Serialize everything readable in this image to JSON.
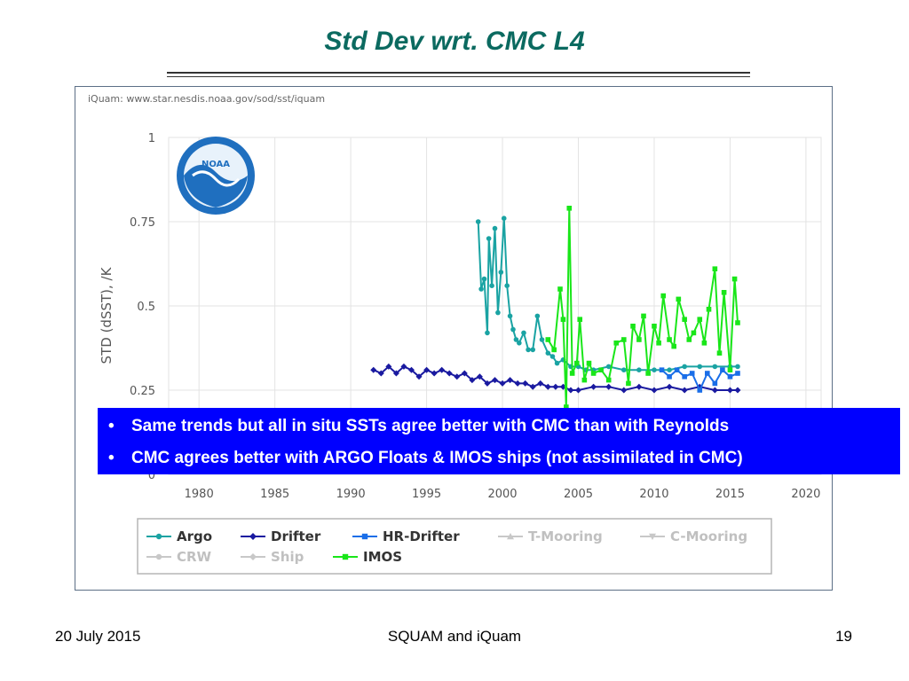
{
  "slide": {
    "title": "Std Dev wrt. CMC L4",
    "bullets": [
      "Same trends but all in situ SSTs agree better with CMC than with Reynolds",
      "CMC agrees better with ARGO Floats & IMOS ships (not assimilated in CMC)"
    ],
    "footer": {
      "date": "20 July 2015",
      "center": "SQUAM and iQuam",
      "page": "19"
    }
  },
  "chart_data": {
    "type": "line",
    "credit": "iQuam: www.star.nesdis.noaa.gov/sod/sst/iquam",
    "logo_text": "NOAA",
    "ylabel": "STD (dSST), /K",
    "xlabel": "",
    "xlim": [
      1978,
      2021
    ],
    "ylim": [
      0,
      1
    ],
    "x_ticks": [
      1980,
      1985,
      1990,
      1995,
      2000,
      2005,
      2010,
      2015,
      2020
    ],
    "y_ticks": [
      0,
      0.25,
      0.5,
      0.75,
      1
    ],
    "y_tick_labels": [
      "0",
      "0.25",
      "0.5",
      "0.75",
      "1"
    ],
    "grid": true,
    "legend_position": "bottom",
    "series": [
      {
        "name": "Argo",
        "color": "#1aa3a3",
        "marker": "circle",
        "active": true,
        "x": [
          1998.4,
          1998.6,
          1998.8,
          1999.0,
          1999.1,
          1999.3,
          1999.5,
          1999.7,
          1999.9,
          2000.1,
          2000.3,
          2000.5,
          2000.7,
          2000.9,
          2001.1,
          2001.4,
          2001.7,
          2002.0,
          2002.3,
          2002.6,
          2003.0,
          2003.3,
          2003.6,
          2004.0,
          2004.5,
          2005.0,
          2005.5,
          2006.0,
          2007.0,
          2008.0,
          2009.0,
          2010.0,
          2011.0,
          2012.0,
          2013.0,
          2014.0,
          2015.0,
          2015.5
        ],
        "y": [
          0.75,
          0.55,
          0.58,
          0.42,
          0.7,
          0.56,
          0.73,
          0.48,
          0.6,
          0.76,
          0.56,
          0.47,
          0.43,
          0.4,
          0.39,
          0.42,
          0.37,
          0.37,
          0.47,
          0.4,
          0.36,
          0.35,
          0.33,
          0.34,
          0.32,
          0.32,
          0.31,
          0.31,
          0.32,
          0.31,
          0.31,
          0.31,
          0.31,
          0.32,
          0.32,
          0.32,
          0.32,
          0.32
        ]
      },
      {
        "name": "Drifter",
        "color": "#1a1aa0",
        "marker": "diamond",
        "active": true,
        "x": [
          1991.5,
          1992.0,
          1992.5,
          1993.0,
          1993.5,
          1994.0,
          1994.5,
          1995.0,
          1995.5,
          1996.0,
          1996.5,
          1997.0,
          1997.5,
          1998.0,
          1998.5,
          1999.0,
          1999.5,
          2000.0,
          2000.5,
          2001.0,
          2001.5,
          2002.0,
          2002.5,
          2003.0,
          2003.5,
          2004.0,
          2004.5,
          2005.0,
          2006.0,
          2007.0,
          2008.0,
          2009.0,
          2010.0,
          2011.0,
          2012.0,
          2013.0,
          2014.0,
          2015.0,
          2015.5
        ],
        "y": [
          0.31,
          0.3,
          0.32,
          0.3,
          0.32,
          0.31,
          0.29,
          0.31,
          0.3,
          0.31,
          0.3,
          0.29,
          0.3,
          0.28,
          0.29,
          0.27,
          0.28,
          0.27,
          0.28,
          0.27,
          0.27,
          0.26,
          0.27,
          0.26,
          0.26,
          0.26,
          0.25,
          0.25,
          0.26,
          0.26,
          0.25,
          0.26,
          0.25,
          0.26,
          0.25,
          0.26,
          0.25,
          0.25,
          0.25
        ]
      },
      {
        "name": "HR-Drifter",
        "color": "#1a6ee8",
        "marker": "square",
        "active": true,
        "x": [
          2010.5,
          2011.0,
          2011.5,
          2012.0,
          2012.5,
          2013.0,
          2013.5,
          2014.0,
          2014.5,
          2015.0,
          2015.5
        ],
        "y": [
          0.31,
          0.29,
          0.31,
          0.29,
          0.3,
          0.25,
          0.3,
          0.27,
          0.31,
          0.29,
          0.3
        ]
      },
      {
        "name": "T-Mooring",
        "color": "#c8c8c8",
        "marker": "triangle",
        "active": false,
        "x": [],
        "y": []
      },
      {
        "name": "C-Mooring",
        "color": "#c8c8c8",
        "marker": "triangle-down",
        "active": false,
        "x": [],
        "y": []
      },
      {
        "name": "CRW",
        "color": "#c8c8c8",
        "marker": "circle",
        "active": false,
        "x": [],
        "y": []
      },
      {
        "name": "Ship",
        "color": "#c8c8c8",
        "marker": "diamond",
        "active": false,
        "x": [],
        "y": []
      },
      {
        "name": "IMOS",
        "color": "#19e619",
        "marker": "square",
        "active": true,
        "x": [
          2003.0,
          2003.4,
          2003.8,
          2004.0,
          2004.2,
          2004.4,
          2004.6,
          2004.9,
          2005.1,
          2005.4,
          2005.7,
          2006.0,
          2006.5,
          2007.0,
          2007.5,
          2008.0,
          2008.3,
          2008.6,
          2009.0,
          2009.3,
          2009.6,
          2010.0,
          2010.3,
          2010.6,
          2011.0,
          2011.3,
          2011.6,
          2012.0,
          2012.3,
          2012.6,
          2013.0,
          2013.3,
          2013.6,
          2014.0,
          2014.3,
          2014.6,
          2015.0,
          2015.3,
          2015.5
        ],
        "y": [
          0.4,
          0.37,
          0.55,
          0.46,
          0.2,
          0.79,
          0.3,
          0.33,
          0.46,
          0.28,
          0.33,
          0.3,
          0.31,
          0.28,
          0.39,
          0.4,
          0.27,
          0.44,
          0.4,
          0.47,
          0.3,
          0.44,
          0.39,
          0.53,
          0.4,
          0.38,
          0.52,
          0.46,
          0.4,
          0.42,
          0.46,
          0.39,
          0.49,
          0.61,
          0.36,
          0.54,
          0.31,
          0.58,
          0.45
        ]
      }
    ]
  }
}
